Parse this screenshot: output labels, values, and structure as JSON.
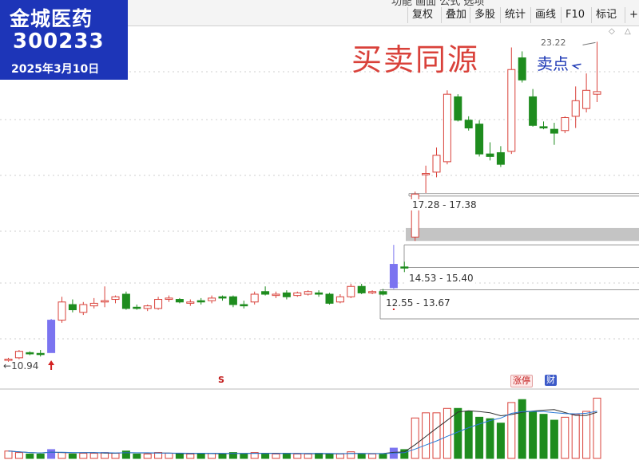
{
  "badge": {
    "name": "金城医药",
    "code": "300233",
    "date": "2025年3月10日"
  },
  "toolbar": {
    "cut_text": "功能    画面    公式    选项",
    "buttons": [
      "复权",
      "叠加",
      "多股",
      "统计",
      "画线",
      "F10",
      "标记",
      "+自"
    ]
  },
  "labels": {
    "big": "买卖同源",
    "small": "卖点",
    "peak": "23.22",
    "zone_high": "17.28 - 17.38",
    "zone_mid": "14.53 - 15.40",
    "zone_low": "12.55 - 13.67",
    "start": "10.94"
  },
  "tags": {
    "zt": "涨停",
    "cai": "财",
    "s": "S"
  },
  "colors": {
    "up": "#d9413a",
    "down": "#1e8c1e",
    "limit": "#7b74f0",
    "zone": "#c4c4c4",
    "ma_dark": "#333333",
    "ma_blue": "#2a7ad6"
  },
  "chart_data": {
    "type": "candlestick",
    "y_range": [
      10.4,
      23.6
    ],
    "candles": [
      {
        "o": 10.95,
        "h": 11.05,
        "l": 10.9,
        "c": 11.0,
        "t": "up"
      },
      {
        "o": 11.05,
        "h": 11.35,
        "l": 11.0,
        "c": 11.3,
        "t": "up"
      },
      {
        "o": 11.25,
        "h": 11.3,
        "l": 11.15,
        "c": 11.2,
        "t": "down"
      },
      {
        "o": 11.2,
        "h": 11.35,
        "l": 11.1,
        "c": 11.22,
        "t": "down"
      },
      {
        "o": 11.25,
        "h": 12.55,
        "l": 11.25,
        "c": 12.5,
        "t": "limit"
      },
      {
        "o": 12.5,
        "h": 13.4,
        "l": 12.4,
        "c": 13.2,
        "t": "up"
      },
      {
        "o": 13.1,
        "h": 13.3,
        "l": 12.8,
        "c": 12.9,
        "t": "down"
      },
      {
        "o": 12.8,
        "h": 13.2,
        "l": 12.7,
        "c": 13.1,
        "t": "up"
      },
      {
        "o": 13.05,
        "h": 13.35,
        "l": 12.95,
        "c": 13.15,
        "t": "up"
      },
      {
        "o": 13.2,
        "h": 13.8,
        "l": 13.0,
        "c": 13.25,
        "t": "up"
      },
      {
        "o": 13.3,
        "h": 13.45,
        "l": 13.15,
        "c": 13.4,
        "t": "up"
      },
      {
        "o": 13.5,
        "h": 13.6,
        "l": 12.9,
        "c": 12.95,
        "t": "down"
      },
      {
        "o": 13.0,
        "h": 13.1,
        "l": 12.9,
        "c": 12.95,
        "t": "down"
      },
      {
        "o": 12.95,
        "h": 13.1,
        "l": 12.85,
        "c": 13.05,
        "t": "up"
      },
      {
        "o": 12.95,
        "h": 13.4,
        "l": 12.9,
        "c": 13.3,
        "t": "up"
      },
      {
        "o": 13.3,
        "h": 13.45,
        "l": 13.2,
        "c": 13.35,
        "t": "up"
      },
      {
        "o": 13.3,
        "h": 13.35,
        "l": 13.15,
        "c": 13.2,
        "t": "down"
      },
      {
        "o": 13.15,
        "h": 13.3,
        "l": 13.05,
        "c": 13.2,
        "t": "up"
      },
      {
        "o": 13.2,
        "h": 13.35,
        "l": 13.1,
        "c": 13.25,
        "t": "down"
      },
      {
        "o": 13.25,
        "h": 13.45,
        "l": 13.15,
        "c": 13.35,
        "t": "up"
      },
      {
        "o": 13.35,
        "h": 13.45,
        "l": 13.25,
        "c": 13.4,
        "t": "down"
      },
      {
        "o": 13.4,
        "h": 13.45,
        "l": 13.0,
        "c": 13.1,
        "t": "down"
      },
      {
        "o": 13.1,
        "h": 13.25,
        "l": 12.95,
        "c": 13.05,
        "t": "down"
      },
      {
        "o": 13.2,
        "h": 13.6,
        "l": 13.1,
        "c": 13.5,
        "t": "up"
      },
      {
        "o": 13.6,
        "h": 13.8,
        "l": 13.45,
        "c": 13.5,
        "t": "down"
      },
      {
        "o": 13.45,
        "h": 13.6,
        "l": 13.35,
        "c": 13.5,
        "t": "up"
      },
      {
        "o": 13.55,
        "h": 13.65,
        "l": 13.3,
        "c": 13.4,
        "t": "down"
      },
      {
        "o": 13.45,
        "h": 13.6,
        "l": 13.4,
        "c": 13.55,
        "t": "up"
      },
      {
        "o": 13.5,
        "h": 13.65,
        "l": 13.45,
        "c": 13.6,
        "t": "up"
      },
      {
        "o": 13.55,
        "h": 13.65,
        "l": 13.4,
        "c": 13.5,
        "t": "down"
      },
      {
        "o": 13.5,
        "h": 13.55,
        "l": 13.1,
        "c": 13.15,
        "t": "down"
      },
      {
        "o": 13.2,
        "h": 13.5,
        "l": 13.15,
        "c": 13.4,
        "t": "up"
      },
      {
        "o": 13.4,
        "h": 13.9,
        "l": 13.35,
        "c": 13.8,
        "t": "up"
      },
      {
        "o": 13.8,
        "h": 13.9,
        "l": 13.5,
        "c": 13.55,
        "t": "down"
      },
      {
        "o": 13.55,
        "h": 13.65,
        "l": 13.5,
        "c": 13.6,
        "t": "up"
      },
      {
        "o": 13.6,
        "h": 13.7,
        "l": 13.45,
        "c": 13.5,
        "t": "down"
      },
      {
        "o": 13.75,
        "h": 15.4,
        "l": 13.7,
        "c": 14.65,
        "t": "limit"
      },
      {
        "o": 14.55,
        "h": 14.75,
        "l": 14.35,
        "c": 14.55,
        "t": "down"
      },
      {
        "o": 15.7,
        "h": 17.45,
        "l": 15.55,
        "c": 17.35,
        "t": "up"
      },
      {
        "o": 18.15,
        "h": 18.45,
        "l": 17.4,
        "c": 18.1,
        "t": "up"
      },
      {
        "o": 18.2,
        "h": 19.15,
        "l": 18.0,
        "c": 18.85,
        "t": "up"
      },
      {
        "o": 18.6,
        "h": 21.35,
        "l": 18.5,
        "c": 21.2,
        "t": "up"
      },
      {
        "o": 21.1,
        "h": 21.2,
        "l": 20.15,
        "c": 20.2,
        "t": "down"
      },
      {
        "o": 20.2,
        "h": 20.35,
        "l": 19.8,
        "c": 19.9,
        "t": "down"
      },
      {
        "o": 20.05,
        "h": 20.2,
        "l": 18.8,
        "c": 18.9,
        "t": "down"
      },
      {
        "o": 18.9,
        "h": 19.35,
        "l": 18.65,
        "c": 18.8,
        "t": "down"
      },
      {
        "o": 18.95,
        "h": 19.2,
        "l": 18.4,
        "c": 18.5,
        "t": "down"
      },
      {
        "o": 19.0,
        "h": 23.0,
        "l": 18.9,
        "c": 22.15,
        "t": "up"
      },
      {
        "o": 22.6,
        "h": 22.85,
        "l": 21.65,
        "c": 21.75,
        "t": "down"
      },
      {
        "o": 21.1,
        "h": 21.4,
        "l": 19.95,
        "c": 20.0,
        "t": "down"
      },
      {
        "o": 19.95,
        "h": 20.15,
        "l": 19.85,
        "c": 19.9,
        "t": "down"
      },
      {
        "o": 19.85,
        "h": 20.1,
        "l": 19.25,
        "c": 19.7,
        "t": "down"
      },
      {
        "o": 19.8,
        "h": 20.35,
        "l": 19.7,
        "c": 20.3,
        "t": "up"
      },
      {
        "o": 20.35,
        "h": 21.5,
        "l": 19.9,
        "c": 20.95,
        "t": "up"
      },
      {
        "o": 20.65,
        "h": 22.0,
        "l": 20.5,
        "c": 21.35,
        "t": "up"
      },
      {
        "o": 21.2,
        "h": 23.22,
        "l": 20.9,
        "c": 21.3,
        "t": "up"
      }
    ],
    "zones": [
      {
        "from": 17.28,
        "to": 17.38,
        "style": "line"
      },
      {
        "from": 15.55,
        "to": 16.05,
        "style": "band"
      },
      {
        "from": 14.53,
        "to": 15.4,
        "style": "line"
      },
      {
        "from": 12.55,
        "to": 13.67,
        "style": "line"
      }
    ],
    "volume": [
      10,
      8,
      6,
      6,
      12,
      8,
      6,
      7,
      7,
      8,
      7,
      10,
      6,
      6,
      8,
      7,
      6,
      6,
      7,
      7,
      6,
      8,
      6,
      8,
      7,
      6,
      7,
      6,
      6,
      7,
      6,
      6,
      9,
      6,
      6,
      6,
      14,
      12,
      55,
      62,
      62,
      68,
      68,
      64,
      56,
      54,
      48,
      76,
      80,
      64,
      60,
      52,
      56,
      60,
      64,
      82
    ],
    "volume_max": 90
  }
}
